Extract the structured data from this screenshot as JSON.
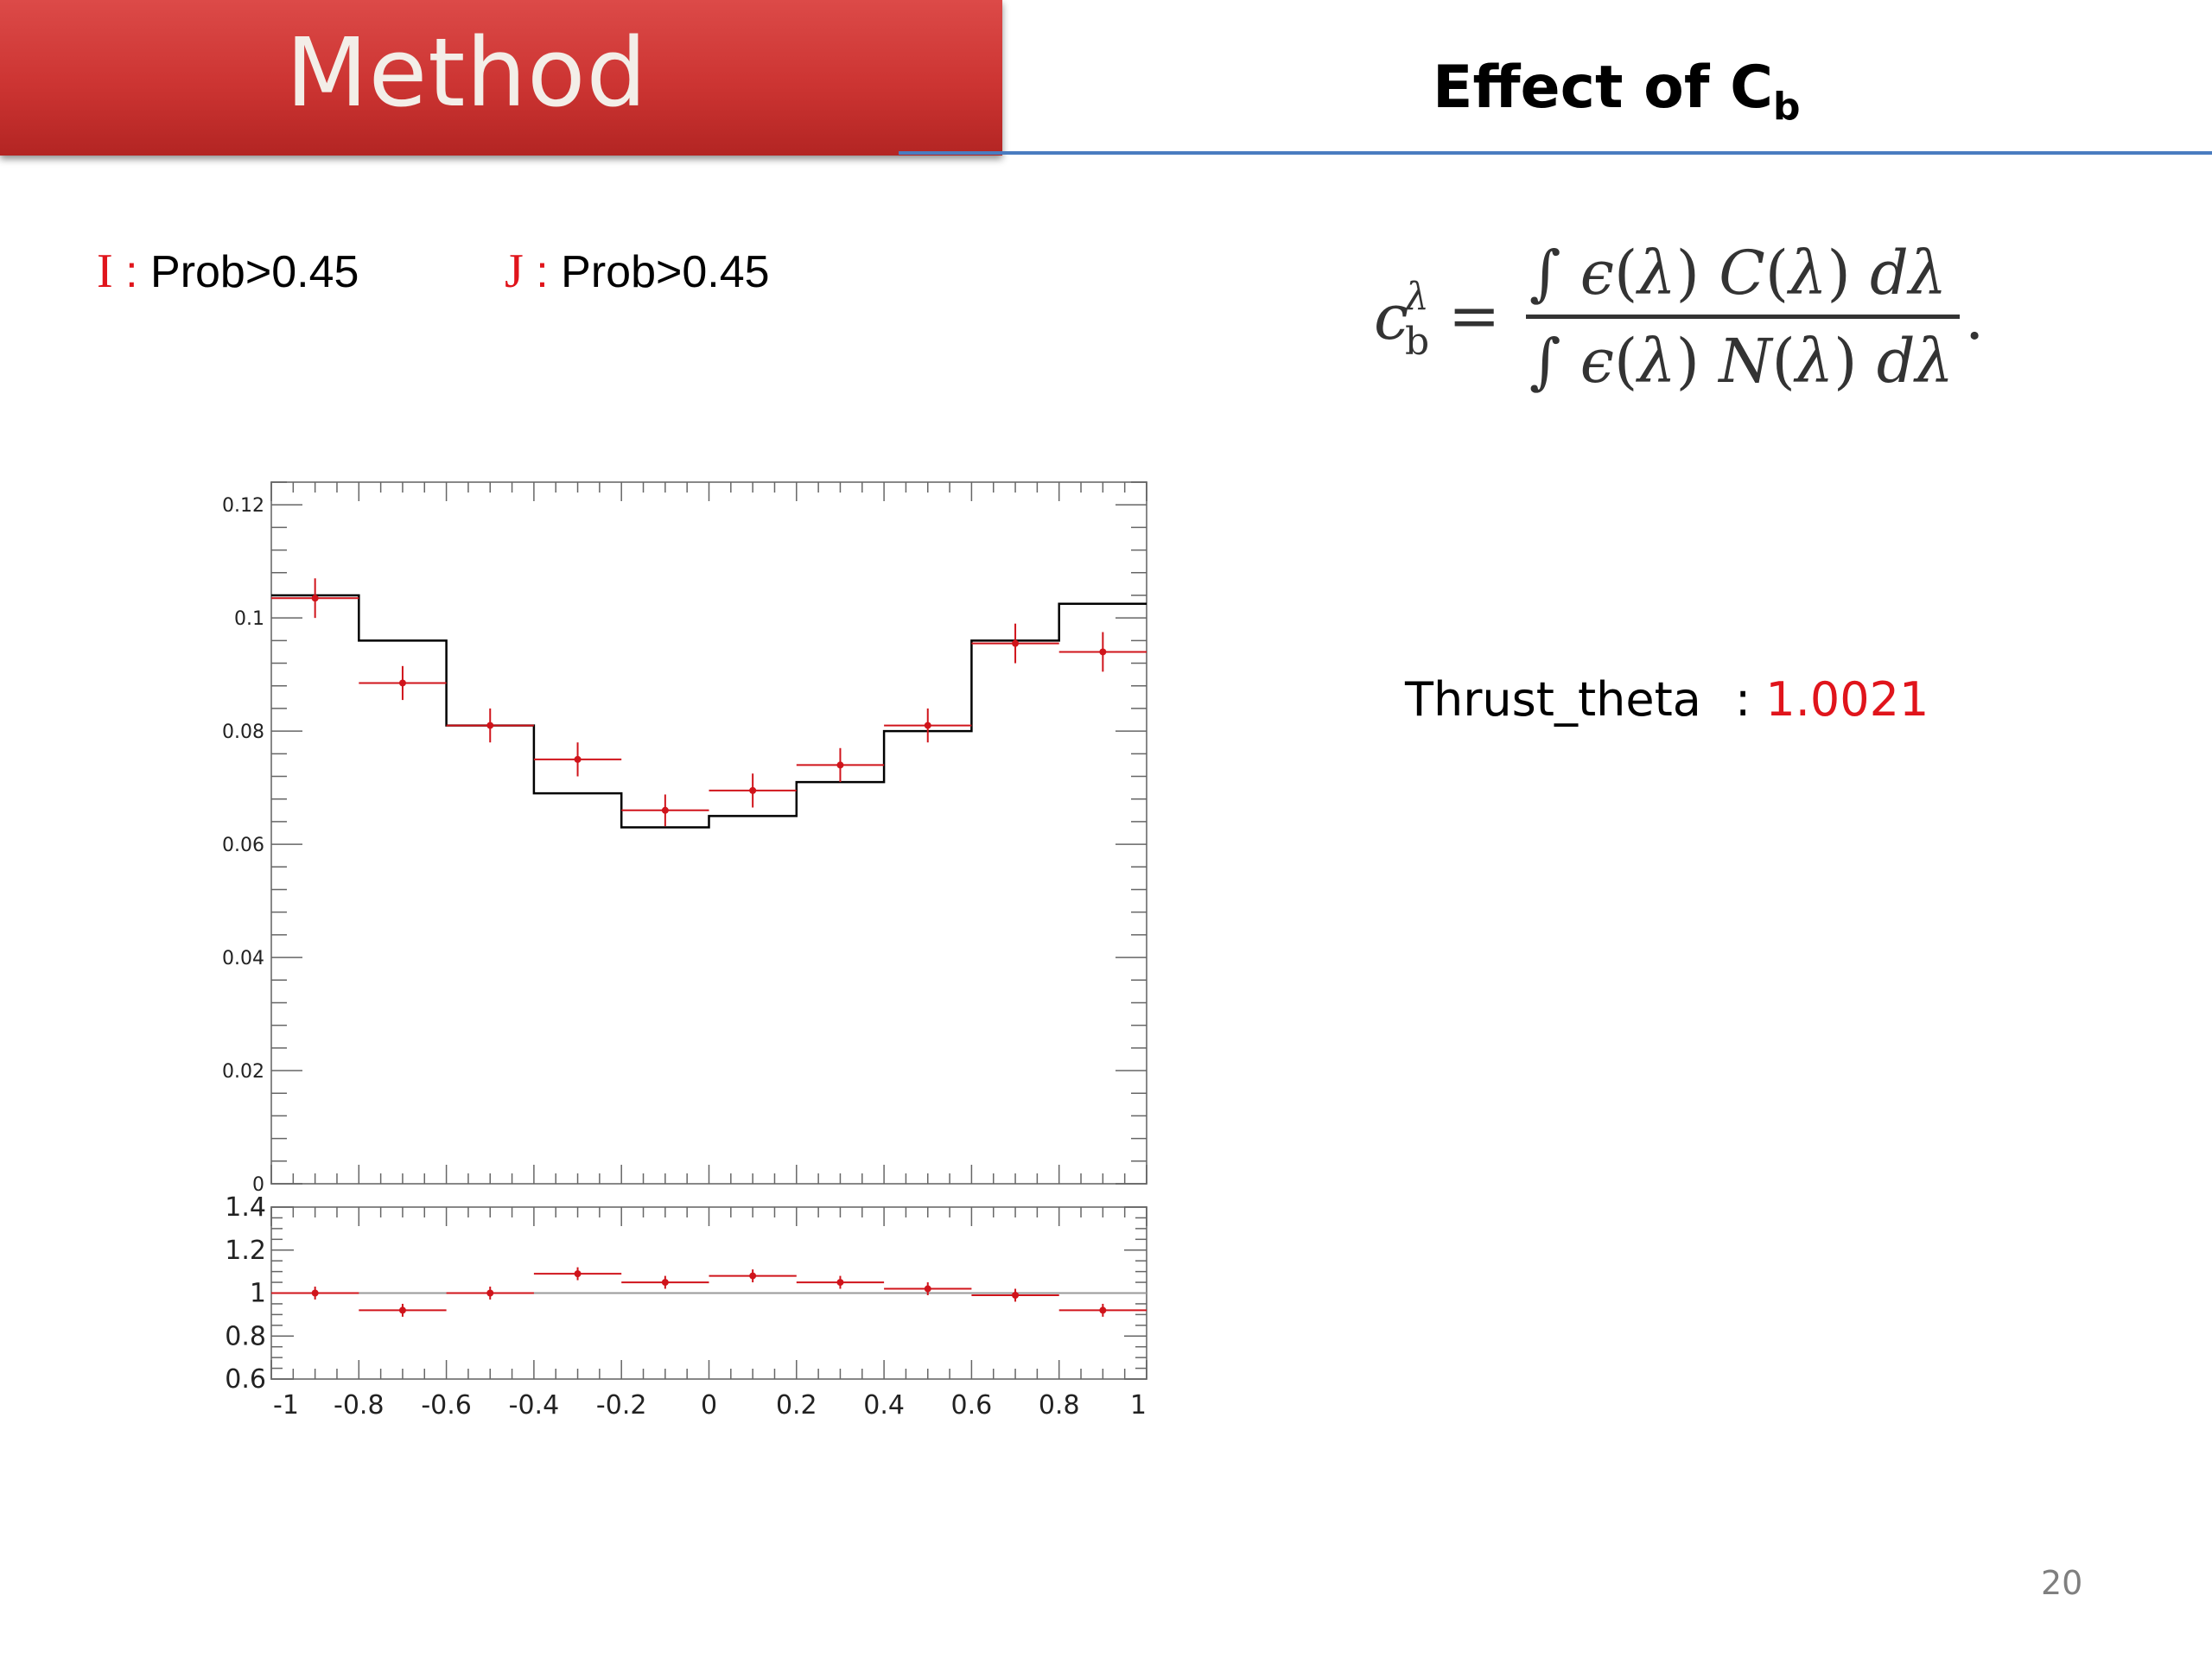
{
  "slide": {
    "title": "Method",
    "subtitle_main": "Effect of C",
    "subtitle_sub": "b",
    "page_number": "20",
    "colors": {
      "banner": "#cc3432",
      "rule": "#4a7cc0",
      "accent_red": "#e0141b"
    }
  },
  "conditions": [
    {
      "symbol": "I",
      "separator": ":",
      "text": "Prob>0.45"
    },
    {
      "symbol": "J",
      "separator": ":",
      "text": "Prob>0.45"
    }
  ],
  "result": {
    "label": "Thrust_theta",
    "separator": ":",
    "value": "1.0021"
  },
  "chart_data": [
    {
      "type": "histogram",
      "panel": "top",
      "xlim": [
        -1,
        1
      ],
      "ylim": [
        0,
        0.124
      ],
      "y_ticks": [
        "0",
        "0.02",
        "0.04",
        "0.06",
        "0.08",
        "0.1",
        "0.12"
      ],
      "bin_edges": [
        -1,
        -0.8,
        -0.6,
        -0.4,
        -0.2,
        0,
        0.2,
        0.4,
        0.6,
        0.8,
        1
      ],
      "series": [
        {
          "style": "step",
          "color": "#000000",
          "values": [
            0.104,
            0.096,
            0.081,
            0.069,
            0.063,
            0.065,
            0.071,
            0.08,
            0.096,
            0.1025
          ]
        },
        {
          "style": "markers_with_errors",
          "color": "#d0141b",
          "values": [
            0.1035,
            0.0885,
            0.081,
            0.075,
            0.066,
            0.0695,
            0.074,
            0.081,
            0.0955,
            0.094
          ],
          "errors": [
            0.0035,
            0.003,
            0.003,
            0.003,
            0.0028,
            0.003,
            0.003,
            0.003,
            0.0035,
            0.0035
          ]
        }
      ],
      "grid": false
    },
    {
      "type": "ratio",
      "panel": "bottom",
      "xlim": [
        -1,
        1
      ],
      "ylim": [
        0.6,
        1.4
      ],
      "y_ticks": [
        "0.6",
        "0.8",
        "1",
        "1.2",
        "1.4"
      ],
      "x_ticks": [
        "-1",
        "-0.8",
        "-0.6",
        "-0.4",
        "-0.2",
        "0",
        "0.2",
        "0.4",
        "0.6",
        "0.8",
        "1"
      ],
      "x": [
        -0.9,
        -0.7,
        -0.5,
        -0.3,
        -0.1,
        0.1,
        0.3,
        0.5,
        0.7,
        0.9
      ],
      "values": [
        1.0,
        0.92,
        1.0,
        1.09,
        1.05,
        1.08,
        1.05,
        1.02,
        0.99,
        0.92
      ],
      "errors": [
        0.03,
        0.03,
        0.03,
        0.03,
        0.03,
        0.03,
        0.03,
        0.03,
        0.03,
        0.03
      ],
      "reference_line": 1,
      "color": "#d0141b",
      "grid": false
    }
  ]
}
